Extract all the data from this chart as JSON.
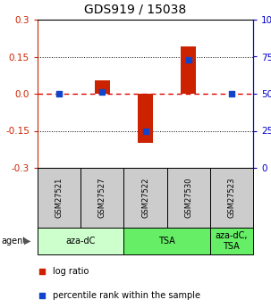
{
  "title": "GDS919 / 15038",
  "samples": [
    "GSM27521",
    "GSM27527",
    "GSM27522",
    "GSM27530",
    "GSM27523"
  ],
  "log_ratio": [
    0.0,
    0.055,
    -0.2,
    0.19,
    0.0
  ],
  "percentile_rank_pct": [
    50,
    51,
    25,
    73,
    50
  ],
  "agent_groups": [
    {
      "label": "aza-dC",
      "start": 0,
      "end": 2,
      "color": "#ccffcc"
    },
    {
      "label": "TSA",
      "start": 2,
      "end": 4,
      "color": "#66ee66"
    },
    {
      "label": "aza-dC,\nTSA",
      "start": 4,
      "end": 5,
      "color": "#66ee66"
    }
  ],
  "ylim": [
    -0.3,
    0.3
  ],
  "yticks_left": [
    -0.3,
    -0.15,
    0.0,
    0.15,
    0.3
  ],
  "yticks_right": [
    0,
    25,
    50,
    75,
    100
  ],
  "bar_width": 0.35,
  "bar_color_red": "#cc2200",
  "bar_color_blue": "#1144cc",
  "dot_size": 18,
  "hline_0_color": "#dd0000",
  "hline_grid_color": "#000000",
  "sample_box_color": "#cccccc",
  "legend_red": "log ratio",
  "legend_blue": "percentile rank within the sample",
  "title_fontsize": 10,
  "tick_fontsize": 7.5,
  "sample_fontsize": 6,
  "agent_fontsize": 7,
  "legend_fontsize": 7
}
